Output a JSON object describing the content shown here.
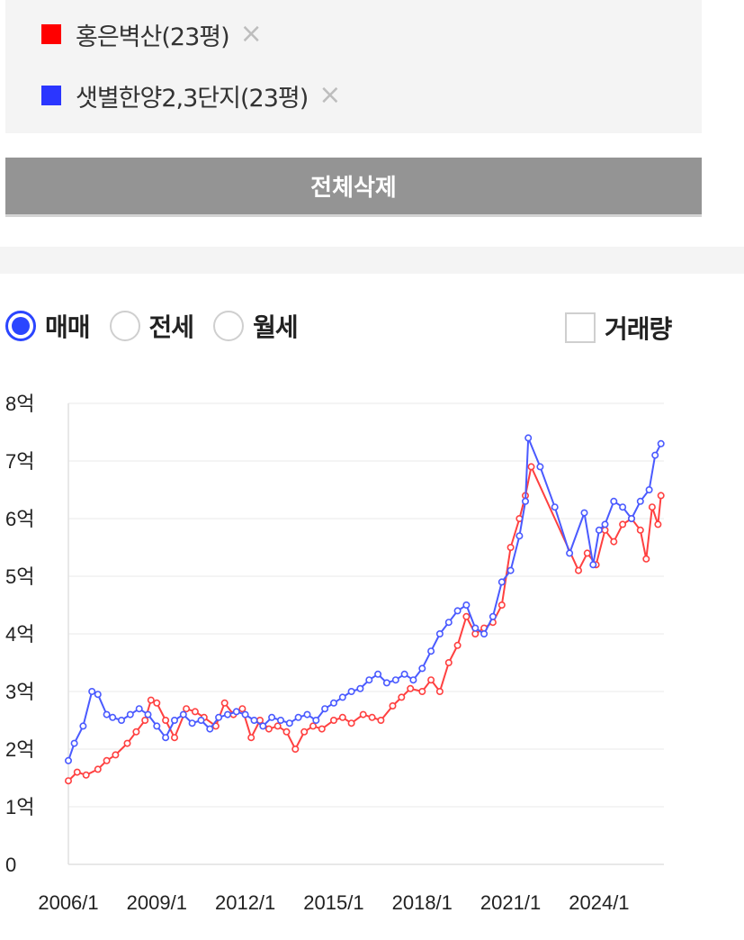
{
  "legend": {
    "items": [
      {
        "label": "홍은벽산(23평)",
        "color": "#ff0000",
        "remove_icon": "×"
      },
      {
        "label": "샛별한양2,3단지(23평)",
        "color": "#2b36ff",
        "remove_icon": "×"
      }
    ]
  },
  "actions": {
    "delete_all_label": "전체삭제"
  },
  "tabs": [
    {
      "label": "매매",
      "selected": true
    },
    {
      "label": "전세",
      "selected": false
    },
    {
      "label": "월세",
      "selected": false
    }
  ],
  "volume_toggle": {
    "label": "거래량",
    "checked": false
  },
  "chart_data": {
    "type": "line",
    "title": "",
    "xlabel": "",
    "ylabel": "",
    "x_ticks": [
      "2006/1",
      "2009/1",
      "2012/1",
      "2015/1",
      "2018/1",
      "2021/1",
      "2024/1"
    ],
    "y_ticks": [
      "0",
      "1억",
      "2억",
      "3억",
      "4억",
      "5억",
      "6억",
      "7억",
      "8억"
    ],
    "ylim": [
      0,
      8
    ],
    "xlim": [
      2006.0,
      2026.2
    ],
    "grid": true,
    "series": [
      {
        "name": "홍은벽산(23평)",
        "color": "#ff4040",
        "x": [
          2006.0,
          2006.3,
          2006.6,
          2007.0,
          2007.3,
          2007.6,
          2008.0,
          2008.3,
          2008.6,
          2008.8,
          2009.0,
          2009.3,
          2009.6,
          2010.0,
          2010.3,
          2010.6,
          2011.0,
          2011.3,
          2011.6,
          2011.9,
          2012.2,
          2012.5,
          2012.8,
          2013.1,
          2013.4,
          2013.7,
          2014.0,
          2014.3,
          2014.6,
          2015.0,
          2015.3,
          2015.6,
          2016.0,
          2016.3,
          2016.6,
          2017.0,
          2017.3,
          2017.6,
          2018.0,
          2018.3,
          2018.6,
          2018.9,
          2019.2,
          2019.5,
          2019.8,
          2020.1,
          2020.4,
          2020.7,
          2021.0,
          2021.3,
          2021.5,
          2021.7,
          2023.3,
          2023.6,
          2023.9,
          2024.2,
          2024.5,
          2024.8,
          2025.1,
          2025.4,
          2025.6,
          2025.8,
          2026.0,
          2026.1
        ],
        "y": [
          1.45,
          1.6,
          1.55,
          1.65,
          1.8,
          1.9,
          2.1,
          2.3,
          2.5,
          2.85,
          2.8,
          2.5,
          2.2,
          2.7,
          2.65,
          2.55,
          2.4,
          2.8,
          2.6,
          2.7,
          2.2,
          2.5,
          2.35,
          2.4,
          2.3,
          2.0,
          2.3,
          2.4,
          2.35,
          2.5,
          2.55,
          2.45,
          2.6,
          2.55,
          2.5,
          2.75,
          2.9,
          3.05,
          3.0,
          3.2,
          3.0,
          3.5,
          3.8,
          4.3,
          4.0,
          4.1,
          4.2,
          4.5,
          5.5,
          6.0,
          6.4,
          6.9,
          5.1,
          5.4,
          5.2,
          5.8,
          5.6,
          5.9,
          6.0,
          5.8,
          5.3,
          6.2,
          5.9,
          6.4
        ]
      },
      {
        "name": "샛별한양2,3단지(23평)",
        "color": "#4a5aff",
        "x": [
          2006.0,
          2006.2,
          2006.5,
          2006.8,
          2007.0,
          2007.3,
          2007.5,
          2007.8,
          2008.1,
          2008.4,
          2008.7,
          2009.0,
          2009.3,
          2009.6,
          2009.9,
          2010.2,
          2010.5,
          2010.8,
          2011.1,
          2011.4,
          2011.7,
          2012.0,
          2012.3,
          2012.6,
          2012.9,
          2013.2,
          2013.5,
          2013.8,
          2014.1,
          2014.4,
          2014.7,
          2015.0,
          2015.3,
          2015.6,
          2015.9,
          2016.2,
          2016.5,
          2016.8,
          2017.1,
          2017.4,
          2017.7,
          2018.0,
          2018.3,
          2018.6,
          2018.9,
          2019.2,
          2019.5,
          2019.8,
          2020.1,
          2020.4,
          2020.7,
          2021.0,
          2021.3,
          2021.5,
          2021.6,
          2022.0,
          2022.5,
          2023.0,
          2023.5,
          2023.8,
          2024.0,
          2024.2,
          2024.5,
          2024.8,
          2025.1,
          2025.4,
          2025.7,
          2025.9,
          2026.1
        ],
        "y": [
          1.8,
          2.1,
          2.4,
          3.0,
          2.95,
          2.6,
          2.55,
          2.5,
          2.6,
          2.7,
          2.6,
          2.4,
          2.2,
          2.5,
          2.6,
          2.45,
          2.5,
          2.35,
          2.55,
          2.6,
          2.65,
          2.6,
          2.5,
          2.4,
          2.55,
          2.5,
          2.45,
          2.55,
          2.6,
          2.5,
          2.7,
          2.8,
          2.9,
          3.0,
          3.05,
          3.2,
          3.3,
          3.15,
          3.2,
          3.3,
          3.2,
          3.4,
          3.7,
          4.0,
          4.2,
          4.4,
          4.5,
          4.1,
          4.0,
          4.3,
          4.9,
          5.1,
          5.7,
          6.3,
          7.4,
          6.9,
          6.2,
          5.4,
          6.1,
          5.2,
          5.8,
          5.9,
          6.3,
          6.2,
          6.0,
          6.3,
          6.5,
          7.1,
          7.3
        ]
      }
    ]
  }
}
